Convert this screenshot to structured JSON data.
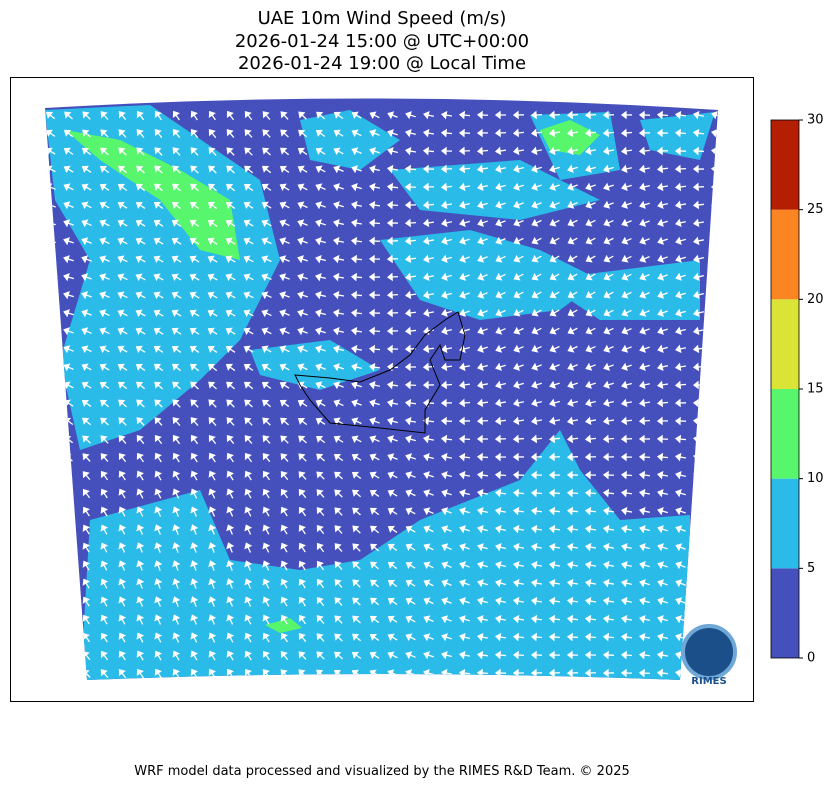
{
  "title": [
    "UAE 10m Wind Speed (m/s)",
    "2026-01-24 15:00 @ UTC+00:00",
    "2026-01-24 19:00 @ Local Time"
  ],
  "colorbar": {
    "ticks": [
      0,
      5,
      10,
      15,
      20,
      25,
      30
    ],
    "colors": [
      "#4650bd",
      "#2bbbe8",
      "#58f66c",
      "#d9e436",
      "#fb8523",
      "#b41f03"
    ]
  },
  "logo": "RIMES",
  "footer": "WRF model data processed and visualized by the RIMES R&D Team. © 2025"
}
